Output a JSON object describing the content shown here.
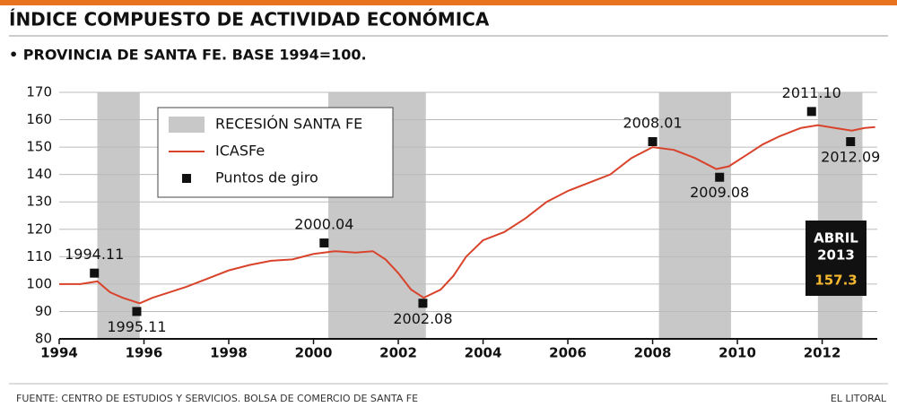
{
  "chart_data": {
    "type": "line",
    "title": "ÍNDICE COMPUESTO DE ACTIVIDAD ECONÓMICA",
    "subtitle": "• PROVINCIA DE SANTA FE. BASE 1994=100.",
    "source": "FUENTE: CENTRO DE ESTUDIOS Y SERVICIOS. BOLSA DE COMERCIO DE SANTA FE",
    "credit": "EL LITORAL",
    "xlim": [
      1994,
      2013.3
    ],
    "xticks": [
      1994,
      1996,
      1998,
      2000,
      2002,
      2004,
      2006,
      2008,
      2010,
      2012
    ],
    "ylim": [
      80,
      170
    ],
    "yticks": [
      80,
      90,
      100,
      110,
      120,
      130,
      140,
      150,
      160,
      170
    ],
    "grid": true,
    "recession_name": "RECESIÓN SANTA FE",
    "recession_color": "#c8c8c8",
    "recessions": [
      [
        1994.9,
        1995.9
      ],
      [
        2000.35,
        2002.65
      ],
      [
        2008.15,
        2009.85
      ],
      [
        2011.9,
        2012.95
      ]
    ],
    "series": [
      {
        "name": "ICASFe",
        "color": "#d9432b",
        "x": [
          1994,
          1994.5,
          1994.9,
          1995.2,
          1995.5,
          1995.9,
          1996.2,
          1996.6,
          1997,
          1997.5,
          1998,
          1998.5,
          1999,
          1999.5,
          2000,
          2000.5,
          2001,
          2001.4,
          2001.7,
          2002,
          2002.3,
          2002.6,
          2003,
          2003.3,
          2003.6,
          2004,
          2004.5,
          2005,
          2005.5,
          2006,
          2006.5,
          2007,
          2007.5,
          2008,
          2008.5,
          2009,
          2009.5,
          2009.8,
          2010.2,
          2010.6,
          2011,
          2011.5,
          2011.9,
          2012.3,
          2012.7,
          2013,
          2013.25
        ],
        "values": [
          100,
          100,
          101,
          97,
          95,
          93,
          95,
          97,
          99,
          102,
          105,
          107,
          108.5,
          109,
          111,
          112,
          111.5,
          112,
          109,
          104,
          98,
          95,
          98,
          103,
          110,
          116,
          119,
          124,
          130,
          134,
          137,
          140,
          146,
          150,
          149,
          146,
          142,
          143,
          147,
          151,
          154,
          157,
          158,
          157,
          156,
          157,
          157.3
        ]
      },
      {
        "name": "Puntos de giro",
        "color": "#111111",
        "markers": true,
        "x": [
          1994.83,
          1995.83,
          2000.25,
          2002.58,
          2008.0,
          2009.58,
          2011.75,
          2012.67
        ],
        "values": [
          104,
          90,
          115,
          93,
          152,
          139,
          163,
          152
        ],
        "point_labels": [
          "1994.11",
          "1995.11",
          "2000.04",
          "2002.08",
          "2008.01",
          "2009.08",
          "2011.10",
          "2012.09"
        ]
      }
    ],
    "callout": {
      "month": "ABRIL",
      "year": "2013",
      "value": "157.3"
    }
  }
}
